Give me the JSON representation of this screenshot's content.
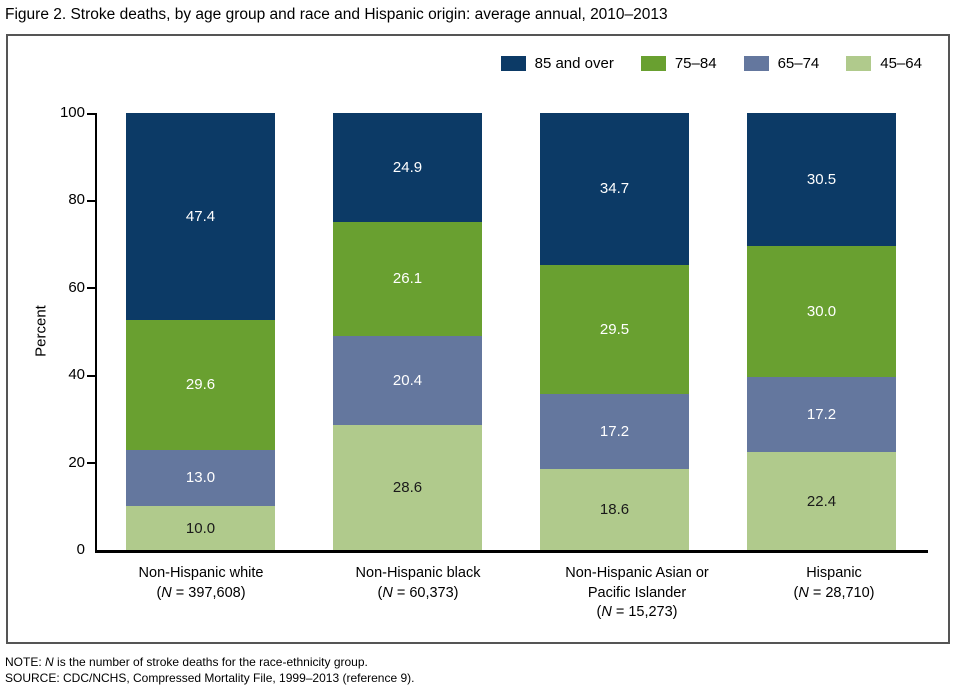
{
  "chart_data": {
    "type": "bar",
    "subtype": "stacked-100-percent",
    "title": "Figure 2. Stroke deaths, by age group and race and Hispanic origin: average annual, 2010–2013",
    "ylabel": "Percent",
    "ylim": [
      0,
      100
    ],
    "yticks": [
      "0",
      "20",
      "40",
      "60",
      "80",
      "100"
    ],
    "grid": "off",
    "legend_position": "top-right",
    "categories": [
      {
        "lines": [
          "Non-Hispanic white"
        ],
        "n_label": "(N = 397,608)"
      },
      {
        "lines": [
          "Non-Hispanic black"
        ],
        "n_label": "(N = 60,373)"
      },
      {
        "lines": [
          "Non-Hispanic Asian or",
          "Pacific Islander"
        ],
        "n_label": "(N = 15,273)"
      },
      {
        "lines": [
          "Hispanic"
        ],
        "n_label": "(N = 28,710)"
      }
    ],
    "series": [
      {
        "name": "85 and over",
        "color": "#0c3a66",
        "label_color": "#ffffff",
        "values": [
          "47.4",
          "24.9",
          "34.7",
          "30.5"
        ]
      },
      {
        "name": "75–84",
        "color": "#69a030",
        "label_color": "#ffffff",
        "values": [
          "29.6",
          "26.1",
          "29.5",
          "30.0"
        ]
      },
      {
        "name": "65–74",
        "color": "#64779e",
        "label_color": "#ffffff",
        "values": [
          "13.0",
          "20.4",
          "17.2",
          "17.2"
        ]
      },
      {
        "name": "45–64",
        "color": "#b0ca8c",
        "label_color": "#1a1a1a",
        "values": [
          "10.0",
          "28.6",
          "18.6",
          "22.4"
        ]
      }
    ]
  },
  "notes": [
    "NOTE: N is the number of stroke deaths for the race-ethnicity group.",
    "SOURCE: CDC/NCHS, Compressed Mortality File, 1999–2013 (reference 9)."
  ]
}
